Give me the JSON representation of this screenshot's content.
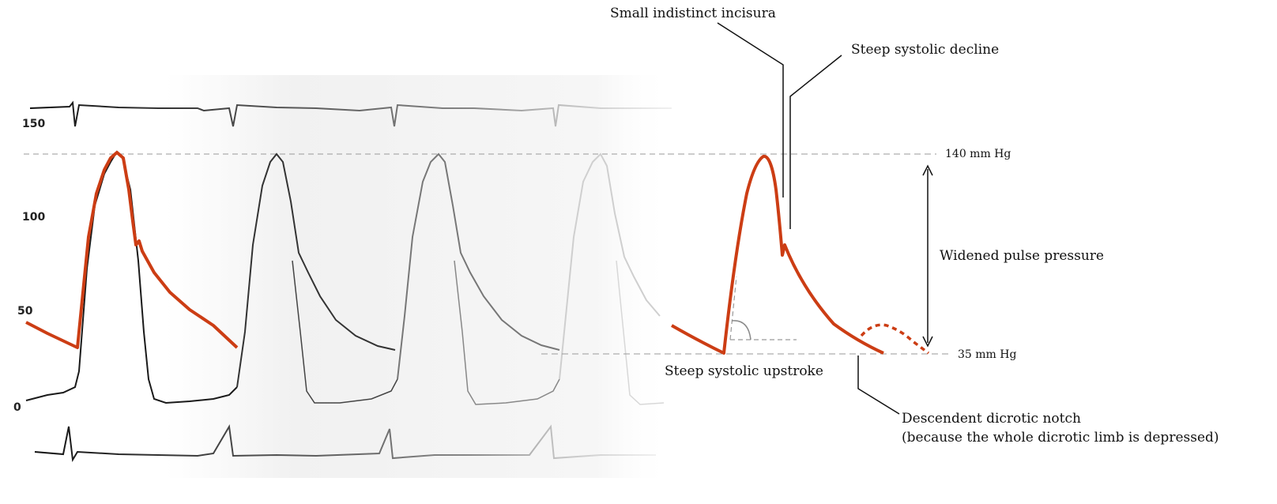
{
  "figure": {
    "left_panel": {
      "scale_ticks": [
        "150",
        "100",
        "50",
        "0"
      ]
    },
    "right_panel": {
      "levels": {
        "top": "140 mm Hg",
        "bottom": "35 mm Hg"
      },
      "annotations": {
        "incisura": "Small indistinct incisura",
        "decline": "Steep systolic decline",
        "pulse_pressure": "Widened pulse pressure",
        "upstroke": "Steep systolic upstroke",
        "notch_line1": "Descendent dicrotic notch",
        "notch_line2": "(because the whole dicrotic limb is depressed)"
      }
    },
    "colors": {
      "highlight": "#cc3d14",
      "trace_1": "#1a1a1a",
      "trace_2": "#444444",
      "trace_3": "#808080",
      "trace_4": "#c8c8c8",
      "guide": "#9a9a9a"
    }
  }
}
